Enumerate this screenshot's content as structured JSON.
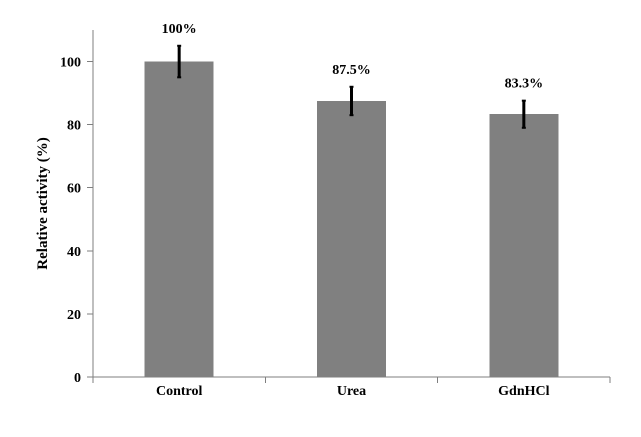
{
  "chart_data": {
    "type": "bar",
    "title": "",
    "xlabel": "",
    "ylabel": "Relative activity (%)",
    "categories": [
      "Control",
      "Urea",
      "GdnHCl"
    ],
    "values": [
      100,
      87.5,
      83.3
    ],
    "errors": [
      5,
      4.5,
      4.3
    ],
    "data_labels": [
      "100%",
      "87.5%",
      "83.3%"
    ],
    "ylim": [
      0,
      110
    ],
    "yticks": [
      0,
      20,
      40,
      60,
      80,
      100
    ],
    "grid": false,
    "legend": "none",
    "bar_color": "#808080",
    "error_color": "#000000",
    "axis_color": "#7f7f7f"
  }
}
